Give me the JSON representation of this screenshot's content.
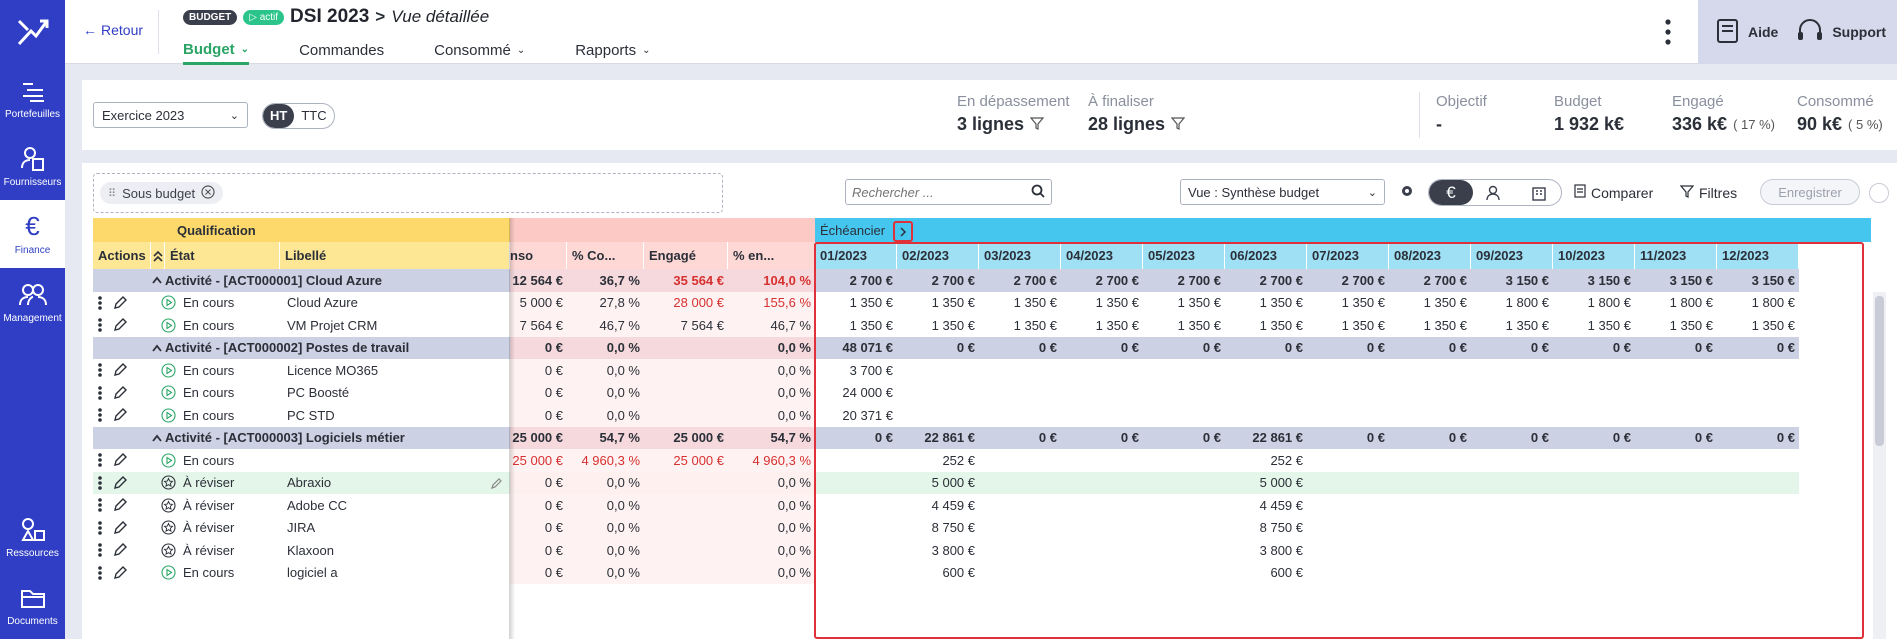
{
  "nav": {
    "items": [
      {
        "label": "Portefeuilles"
      },
      {
        "label": "Fournisseurs"
      },
      {
        "label": "Finance"
      },
      {
        "label": "Management"
      },
      {
        "label": "Ressources"
      },
      {
        "label": "Documents"
      }
    ]
  },
  "header": {
    "back": "Retour",
    "badge_budget": "BUDGET",
    "badge_actif": "actif",
    "title": "DSI 2023",
    "separator": ">",
    "subtitle": "Vue détaillée",
    "tabs": [
      {
        "label": "Budget",
        "active": true
      },
      {
        "label": "Commandes"
      },
      {
        "label": "Consommé"
      },
      {
        "label": "Rapports"
      }
    ],
    "help": "Aide",
    "support": "Support"
  },
  "kpi": {
    "exercice": "Exercice 2023",
    "ht": "HT",
    "ttc": "TTC",
    "depassement": {
      "label": "En dépassement",
      "value": "3 lignes"
    },
    "finaliser": {
      "label": "À finaliser",
      "value": "28 lignes"
    },
    "objectif": {
      "label": "Objectif",
      "value": "-"
    },
    "budget": {
      "label": "Budget",
      "value": "1 932 k€"
    },
    "engage": {
      "label": "Engagé",
      "value": "336 k€",
      "pct": "( 17 %)"
    },
    "consomme": {
      "label": "Consommé",
      "value": "90 k€",
      "pct": "( 5 %)"
    }
  },
  "toolbar": {
    "chip": "Sous budget",
    "search_placeholder": "Rechercher ...",
    "vue": "Vue : Synthèse budget",
    "comparer": "Comparer",
    "filtres": "Filtres",
    "enregistrer": "Enregistrer"
  },
  "grid": {
    "group_qualification": "Qualification",
    "group_echeancier": "Échéancier",
    "headers": {
      "actions": "Actions",
      "etat": "État",
      "libelle": "Libellé",
      "conso": "nso",
      "pct_conso": "% Co...",
      "engage": "Engagé",
      "pct_engage": "% en..."
    },
    "months": [
      "01/2023",
      "02/2023",
      "03/2023",
      "04/2023",
      "05/2023",
      "06/2023",
      "07/2023",
      "08/2023",
      "09/2023",
      "10/2023",
      "11/2023",
      "12/2023"
    ],
    "rows": [
      {
        "type": "group",
        "label": "Activité - [ACT000001] Cloud Azure",
        "conso": "12 564 €",
        "pct_conso": "36,7 %",
        "engage": "35 564 €",
        "pct_engage": "104,0 %",
        "engage_red": true,
        "pct_red": true,
        "months": [
          "2 700 €",
          "2 700 €",
          "2 700 €",
          "2 700 €",
          "2 700 €",
          "2 700 €",
          "2 700 €",
          "2 700 €",
          "3 150 €",
          "3 150 €",
          "3 150 €",
          "3 150 €"
        ]
      },
      {
        "type": "line",
        "etat": "En cours",
        "etat_icon": "play",
        "libelle": "Cloud Azure",
        "conso": "5 000 €",
        "pct_conso": "27,8 %",
        "engage": "28 000 €",
        "pct_engage": "155,6 %",
        "engage_red": true,
        "pct_red": true,
        "months": [
          "1 350 €",
          "1 350 €",
          "1 350 €",
          "1 350 €",
          "1 350 €",
          "1 350 €",
          "1 350 €",
          "1 350 €",
          "1 800 €",
          "1 800 €",
          "1 800 €",
          "1 800 €"
        ]
      },
      {
        "type": "line",
        "etat": "En cours",
        "etat_icon": "play",
        "libelle": "VM Projet CRM",
        "conso": "7 564 €",
        "pct_conso": "46,7 %",
        "engage": "7 564 €",
        "pct_engage": "46,7 %",
        "months": [
          "1 350 €",
          "1 350 €",
          "1 350 €",
          "1 350 €",
          "1 350 €",
          "1 350 €",
          "1 350 €",
          "1 350 €",
          "1 350 €",
          "1 350 €",
          "1 350 €",
          "1 350 €"
        ]
      },
      {
        "type": "group",
        "label": "Activité - [ACT000002] Postes de travail",
        "conso": "0 €",
        "pct_conso": "0,0 %",
        "engage": "",
        "pct_engage": "0,0 %",
        "months": [
          "48 071 €",
          "0 €",
          "0 €",
          "0 €",
          "0 €",
          "0 €",
          "0 €",
          "0 €",
          "0 €",
          "0 €",
          "0 €",
          "0 €"
        ]
      },
      {
        "type": "line",
        "etat": "En cours",
        "etat_icon": "play",
        "libelle": "Licence MO365",
        "conso": "0 €",
        "pct_conso": "0,0 %",
        "engage": "",
        "pct_engage": "0,0 %",
        "months": [
          "3 700 €",
          "",
          "",
          "",
          "",
          "",
          "",
          "",
          "",
          "",
          "",
          ""
        ]
      },
      {
        "type": "line",
        "etat": "En cours",
        "etat_icon": "play",
        "libelle": "PC Boosté",
        "conso": "0 €",
        "pct_conso": "0,0 %",
        "engage": "",
        "pct_engage": "0,0 %",
        "months": [
          "24 000 €",
          "",
          "",
          "",
          "",
          "",
          "",
          "",
          "",
          "",
          "",
          ""
        ]
      },
      {
        "type": "line",
        "etat": "En cours",
        "etat_icon": "play",
        "libelle": "PC STD",
        "conso": "0 €",
        "pct_conso": "0,0 %",
        "engage": "",
        "pct_engage": "0,0 %",
        "months": [
          "20 371 €",
          "",
          "",
          "",
          "",
          "",
          "",
          "",
          "",
          "",
          "",
          ""
        ]
      },
      {
        "type": "group",
        "label": "Activité - [ACT000003] Logiciels métier",
        "conso": "25 000 €",
        "pct_conso": "54,7 %",
        "engage": "25 000 €",
        "pct_engage": "54,7 %",
        "months": [
          "0 €",
          "22 861 €",
          "0 €",
          "0 €",
          "0 €",
          "22 861 €",
          "0 €",
          "0 €",
          "0 €",
          "0 €",
          "0 €",
          "0 €"
        ]
      },
      {
        "type": "line",
        "etat": "En cours",
        "etat_icon": "play",
        "libelle": "",
        "conso": "25 000 €",
        "pct_conso": "4 960,3 %",
        "engage": "25 000 €",
        "pct_engage": "4 960,3 %",
        "conso_red": true,
        "pctc_red": true,
        "engage_red": true,
        "pct_red": true,
        "months": [
          "",
          "252 €",
          "",
          "",
          "",
          "252 €",
          "",
          "",
          "",
          "",
          "",
          ""
        ]
      },
      {
        "type": "line",
        "highlight": true,
        "etat": "À réviser",
        "etat_icon": "star",
        "libelle": "Abraxio",
        "conso": "0 €",
        "pct_conso": "0,0 %",
        "engage": "",
        "pct_engage": "0,0 %",
        "months": [
          "",
          "5 000 €",
          "",
          "",
          "",
          "5 000 €",
          "",
          "",
          "",
          "",
          "",
          ""
        ]
      },
      {
        "type": "line",
        "etat": "À réviser",
        "etat_icon": "star",
        "libelle": "Adobe CC",
        "conso": "0 €",
        "pct_conso": "0,0 %",
        "engage": "",
        "pct_engage": "0,0 %",
        "months": [
          "",
          "4 459 €",
          "",
          "",
          "",
          "4 459 €",
          "",
          "",
          "",
          "",
          "",
          ""
        ]
      },
      {
        "type": "line",
        "etat": "À réviser",
        "etat_icon": "star",
        "libelle": "JIRA",
        "conso": "0 €",
        "pct_conso": "0,0 %",
        "engage": "",
        "pct_engage": "0,0 %",
        "months": [
          "",
          "8 750 €",
          "",
          "",
          "",
          "8 750 €",
          "",
          "",
          "",
          "",
          "",
          ""
        ]
      },
      {
        "type": "line",
        "etat": "À réviser",
        "etat_icon": "star",
        "libelle": "Klaxoon",
        "conso": "0 €",
        "pct_conso": "0,0 %",
        "engage": "",
        "pct_engage": "0,0 %",
        "months": [
          "",
          "3 800 €",
          "",
          "",
          "",
          "3 800 €",
          "",
          "",
          "",
          "",
          "",
          ""
        ]
      },
      {
        "type": "line",
        "etat": "En cours",
        "etat_icon": "play",
        "libelle": "logiciel a",
        "conso": "0 €",
        "pct_conso": "0,0 %",
        "engage": "",
        "pct_engage": "0,0 %",
        "months": [
          "",
          "600 €",
          "",
          "",
          "",
          "600 €",
          "",
          "",
          "",
          "",
          "",
          ""
        ]
      }
    ]
  },
  "colors": {
    "nav_bg": "#2f3ec4",
    "qualification_bg": "#fcd96a",
    "financial_bg": "#fdc9c5",
    "echeancier_bg": "#45c6ef",
    "group_row_bg": "#ccd1e3",
    "highlight_row_bg": "#e3f6e9",
    "alert_red": "#d63030",
    "tab_active": "#2aa566"
  }
}
